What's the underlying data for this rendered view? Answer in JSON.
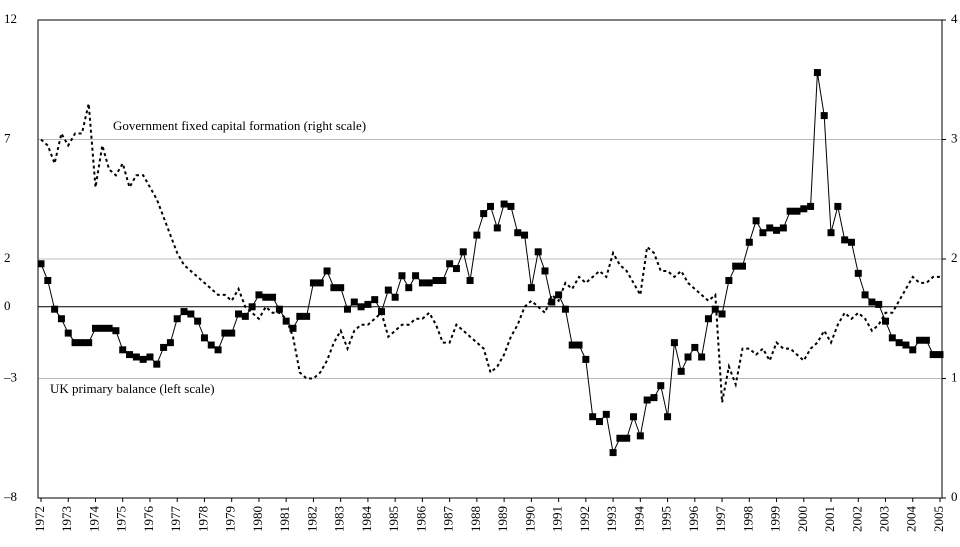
{
  "chart_data": {
    "type": "line",
    "x": [
      1972,
      1972.25,
      1972.5,
      1972.75,
      1973,
      1973.25,
      1973.5,
      1973.75,
      1974,
      1974.25,
      1974.5,
      1974.75,
      1975,
      1975.25,
      1975.5,
      1975.75,
      1976,
      1976.25,
      1976.5,
      1976.75,
      1977,
      1977.25,
      1977.5,
      1977.75,
      1978,
      1978.25,
      1978.5,
      1978.75,
      1979,
      1979.25,
      1979.5,
      1979.75,
      1980,
      1980.25,
      1980.5,
      1980.75,
      1981,
      1981.25,
      1981.5,
      1981.75,
      1982,
      1982.25,
      1982.5,
      1982.75,
      1983,
      1983.25,
      1983.5,
      1983.75,
      1984,
      1984.25,
      1984.5,
      1984.75,
      1985,
      1985.25,
      1985.5,
      1985.75,
      1986,
      1986.25,
      1986.5,
      1986.75,
      1987,
      1987.25,
      1987.5,
      1987.75,
      1988,
      1988.25,
      1988.5,
      1988.75,
      1989,
      1989.25,
      1989.5,
      1989.75,
      1990,
      1990.25,
      1990.5,
      1990.75,
      1991,
      1991.25,
      1991.5,
      1991.75,
      1992,
      1992.25,
      1992.5,
      1992.75,
      1993,
      1993.25,
      1993.5,
      1993.75,
      1994,
      1994.25,
      1994.5,
      1994.75,
      1995,
      1995.25,
      1995.5,
      1995.75,
      1996,
      1996.25,
      1996.5,
      1996.75,
      1997,
      1997.25,
      1997.5,
      1997.75,
      1998,
      1998.25,
      1998.5,
      1998.75,
      1999,
      1999.25,
      1999.5,
      1999.75,
      2000,
      2000.25,
      2000.5,
      2000.75,
      2001,
      2001.25,
      2001.5,
      2001.75,
      2002,
      2002.25,
      2002.5,
      2002.75,
      2003,
      2003.25,
      2003.5,
      2003.75,
      2004,
      2004.25,
      2004.5,
      2004.75,
      2005
    ],
    "series": [
      {
        "name": "UK primary balance (left scale)",
        "color": "#000000",
        "marker": "square",
        "line_style": "solid",
        "values": [
          1.8,
          1.1,
          -0.1,
          -0.5,
          -1.1,
          -1.5,
          -1.5,
          -1.5,
          -0.9,
          -0.9,
          -0.9,
          -1.0,
          -1.8,
          -2.0,
          -2.1,
          -2.2,
          -2.1,
          -2.4,
          -1.7,
          -1.5,
          -0.5,
          -0.2,
          -0.3,
          -0.6,
          -1.3,
          -1.6,
          -1.8,
          -1.1,
          -1.1,
          -0.3,
          -0.4,
          0.0,
          0.5,
          0.4,
          0.4,
          -0.1,
          -0.6,
          -0.9,
          -0.4,
          -0.4,
          1.0,
          1.0,
          1.5,
          0.8,
          0.8,
          -0.1,
          0.2,
          0.0,
          0.1,
          0.3,
          -0.2,
          0.7,
          0.4,
          1.3,
          0.8,
          1.3,
          1.0,
          1.0,
          1.1,
          1.1,
          1.8,
          1.6,
          2.3,
          1.1,
          3.0,
          3.9,
          4.2,
          3.3,
          4.3,
          4.2,
          3.1,
          3.0,
          0.8,
          2.3,
          1.5,
          0.2,
          0.5,
          -0.1,
          -1.6,
          -1.6,
          -2.2,
          -4.6,
          -4.8,
          -4.5,
          -6.1,
          -5.5,
          -5.5,
          -4.6,
          -5.4,
          -3.9,
          -3.8,
          -3.3,
          -4.6,
          -1.5,
          -2.7,
          -2.1,
          -1.7,
          -2.1,
          -0.5,
          -0.1,
          -0.3,
          1.1,
          1.7,
          1.7,
          2.7,
          3.6,
          3.1,
          3.3,
          3.2,
          3.3,
          4.0,
          4.0,
          4.1,
          4.2,
          9.8,
          8.0,
          3.1,
          4.2,
          2.8,
          2.7,
          1.4,
          0.5,
          0.2,
          0.1,
          -0.6,
          -1.3,
          -1.5,
          -1.6,
          -1.8,
          -1.4,
          -1.4,
          -2.0,
          -2.0
        ]
      },
      {
        "name": "Government fixed capital formation (right scale)",
        "color": "#000000",
        "axis": "y2",
        "line_style": "dotted",
        "values": [
          3.0,
          2.95,
          2.8,
          3.05,
          2.95,
          3.05,
          3.05,
          3.3,
          2.6,
          2.95,
          2.75,
          2.7,
          2.8,
          2.6,
          2.7,
          2.7,
          2.6,
          2.5,
          2.35,
          2.2,
          2.05,
          1.95,
          1.9,
          1.85,
          1.8,
          1.75,
          1.7,
          1.7,
          1.65,
          1.75,
          1.6,
          1.55,
          1.5,
          1.6,
          1.55,
          1.55,
          1.5,
          1.35,
          1.05,
          1.0,
          1.0,
          1.05,
          1.15,
          1.3,
          1.4,
          1.25,
          1.4,
          1.45,
          1.45,
          1.5,
          1.55,
          1.35,
          1.4,
          1.45,
          1.45,
          1.5,
          1.5,
          1.55,
          1.45,
          1.3,
          1.3,
          1.45,
          1.4,
          1.35,
          1.3,
          1.25,
          1.05,
          1.1,
          1.2,
          1.35,
          1.45,
          1.6,
          1.65,
          1.6,
          1.55,
          1.7,
          1.65,
          1.8,
          1.75,
          1.85,
          1.8,
          1.85,
          1.9,
          1.85,
          2.05,
          1.95,
          1.9,
          1.8,
          1.7,
          2.1,
          2.05,
          1.9,
          1.9,
          1.85,
          1.9,
          1.8,
          1.75,
          1.7,
          1.65,
          1.7,
          0.8,
          1.1,
          0.95,
          1.25,
          1.25,
          1.2,
          1.25,
          1.15,
          1.3,
          1.25,
          1.25,
          1.2,
          1.15,
          1.25,
          1.3,
          1.4,
          1.3,
          1.45,
          1.55,
          1.5,
          1.55,
          1.5,
          1.4,
          1.45,
          1.55,
          1.55,
          1.65,
          1.75,
          1.85,
          1.8,
          1.8,
          1.85,
          1.85
        ]
      }
    ],
    "xlim": [
      1972,
      2005
    ],
    "xticks": [
      1972,
      1973,
      1974,
      1975,
      1976,
      1977,
      1978,
      1979,
      1980,
      1981,
      1982,
      1983,
      1984,
      1985,
      1986,
      1987,
      1988,
      1989,
      1990,
      1991,
      1992,
      1993,
      1994,
      1995,
      1996,
      1997,
      1998,
      1999,
      2000,
      2001,
      2002,
      2003,
      2004,
      2005
    ],
    "ylim": [
      -8,
      12
    ],
    "yticks": [
      {
        "value": -8,
        "label": "–8"
      },
      {
        "value": -3,
        "label": "–3"
      },
      0,
      2,
      7,
      12
    ],
    "y2lim": [
      0,
      4
    ],
    "y2ticks": [
      0,
      1,
      2,
      3,
      4
    ],
    "grid": true
  }
}
